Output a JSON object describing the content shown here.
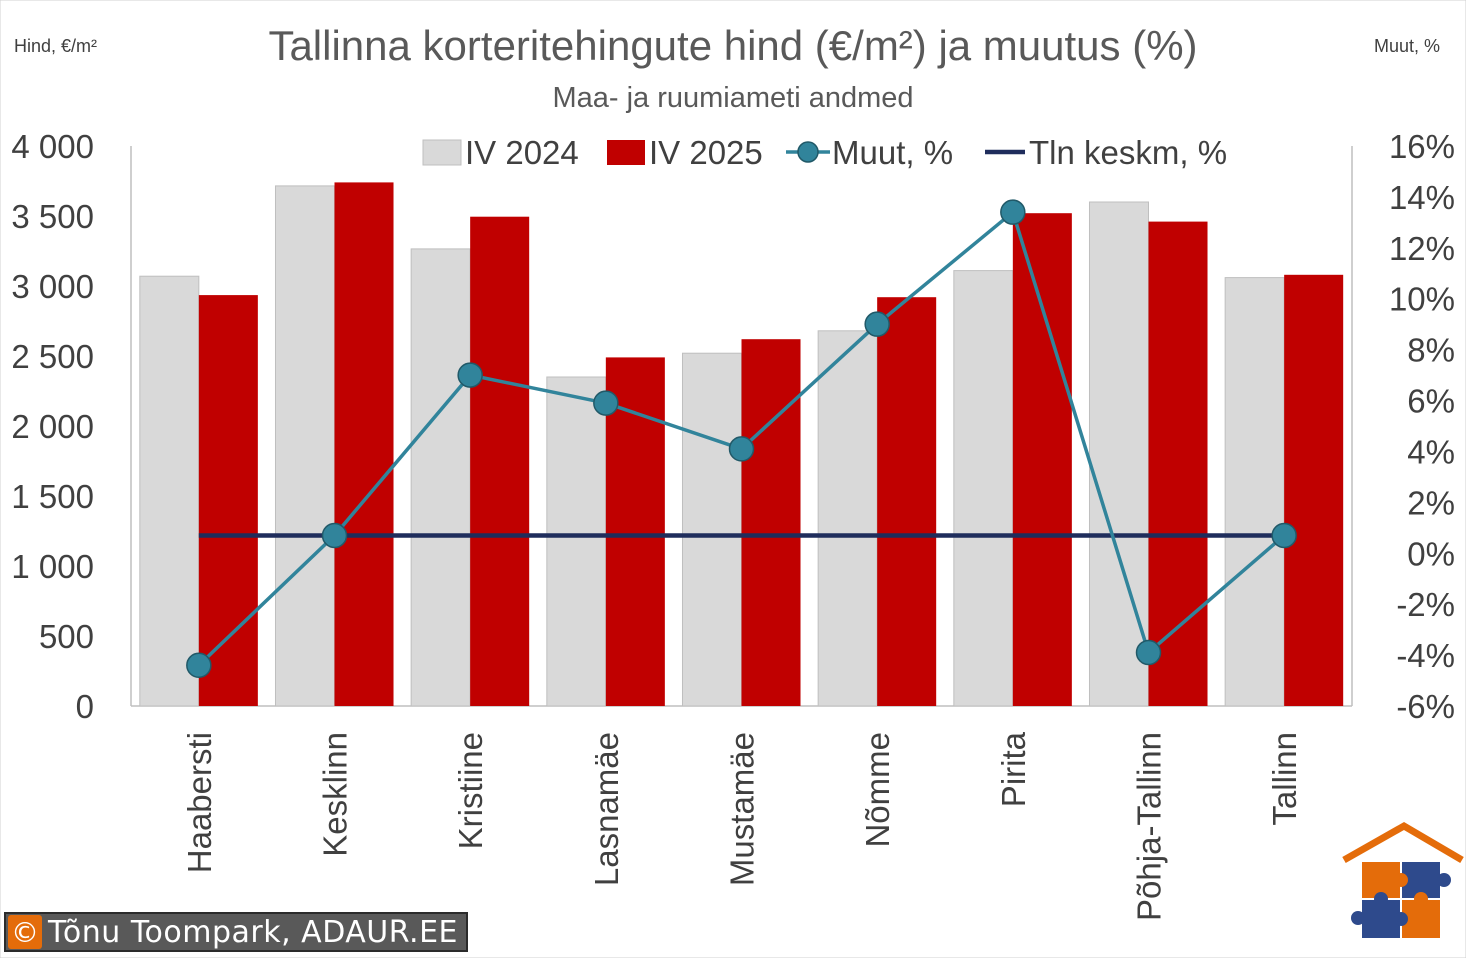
{
  "chart_data": {
    "type": "bar",
    "title": "Tallinna korteritehingute hind (€/m²) ja muutus (%)",
    "subtitle": "Maa- ja ruumiameti andmed",
    "ylabel": "Hind, €/m²",
    "y2label": "Muut, %",
    "categories": [
      "Haabersti",
      "Kesklinn",
      "Kristiine",
      "Lasnamäe",
      "Mustamäe",
      "Nõmme",
      "Pirita",
      "Põhja-Tallinn",
      "Tallinn"
    ],
    "ylim": [
      0,
      4000
    ],
    "y2lim": [
      -6,
      16
    ],
    "yticks": [
      "0",
      "500",
      "1 000",
      "1 500",
      "2 000",
      "2 500",
      "3 000",
      "3 500",
      "4 000"
    ],
    "y2ticks": [
      "-6%",
      "-4%",
      "-2%",
      "0%",
      "2%",
      "4%",
      "6%",
      "8%",
      "10%",
      "12%",
      "14%",
      "16%"
    ],
    "series": [
      {
        "name": "IV 2024",
        "kind": "bar",
        "color": "#d9d9d9",
        "values": [
          3070,
          3715,
          3265,
          2350,
          2520,
          2680,
          3110,
          3600,
          3060
        ]
      },
      {
        "name": "IV 2025",
        "kind": "bar",
        "color": "#c00000",
        "values": [
          2935,
          3740,
          3495,
          2490,
          2620,
          2920,
          3520,
          3460,
          3080
        ]
      },
      {
        "name": "Muut, %",
        "kind": "line-marker",
        "axis": "right",
        "color": "#31849b",
        "values": [
          -4.4,
          0.7,
          7.0,
          5.9,
          4.1,
          9.0,
          13.4,
          -3.9,
          0.7
        ]
      },
      {
        "name": "Tln keskm, %",
        "kind": "line",
        "axis": "right",
        "color": "#1f2d5c",
        "values": [
          0.7,
          0.7,
          0.7,
          0.7,
          0.7,
          0.7,
          0.7,
          0.7,
          0.7
        ]
      }
    ],
    "legend": "top",
    "grid": false
  },
  "footer": {
    "copyright_symbol": "©",
    "credit": "Tõnu Toompark, ADAUR.EE"
  },
  "logo": {
    "name": "house-puzzle-logo",
    "colors": [
      "#e46c0a",
      "#2e4a8c"
    ]
  }
}
